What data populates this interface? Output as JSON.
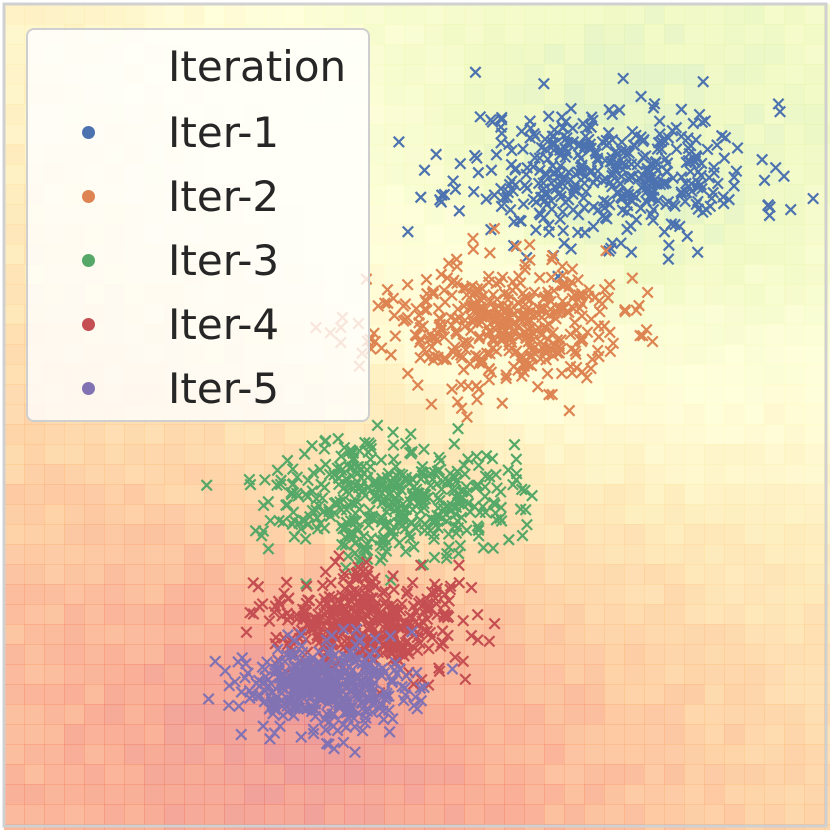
{
  "chart_data": {
    "type": "scatter",
    "marker": "x",
    "grid": false,
    "axes_visible": false,
    "xlim": [
      0,
      100
    ],
    "ylim": [
      0,
      100
    ],
    "legend": {
      "title": "Iteration",
      "placement": "top-left"
    },
    "series": [
      {
        "name": "Iter-1",
        "color": "#4c72b0",
        "center": [
          73.4,
          79.5
        ],
        "spread": [
          9.0,
          4.2
        ],
        "n": 420,
        "seed": 11
      },
      {
        "name": "Iter-2",
        "color": "#dd8452",
        "center": [
          60.0,
          61.0
        ],
        "spread": [
          7.5,
          3.8
        ],
        "n": 420,
        "seed": 23
      },
      {
        "name": "Iter-3",
        "color": "#55a868",
        "center": [
          47.0,
          40.0
        ],
        "spread": [
          7.2,
          3.6
        ],
        "n": 420,
        "seed": 37
      },
      {
        "name": "Iter-4",
        "color": "#c44e52",
        "center": [
          44.0,
          24.8
        ],
        "spread": [
          6.0,
          3.0
        ],
        "n": 420,
        "seed": 41
      },
      {
        "name": "Iter-5",
        "color": "#8172b3",
        "center": [
          39.5,
          16.8
        ],
        "spread": [
          5.5,
          2.6
        ],
        "n": 420,
        "seed": 53
      }
    ],
    "background": {
      "type": "heatmap",
      "colormap": "Spectral",
      "opacity": 0.55
    }
  }
}
